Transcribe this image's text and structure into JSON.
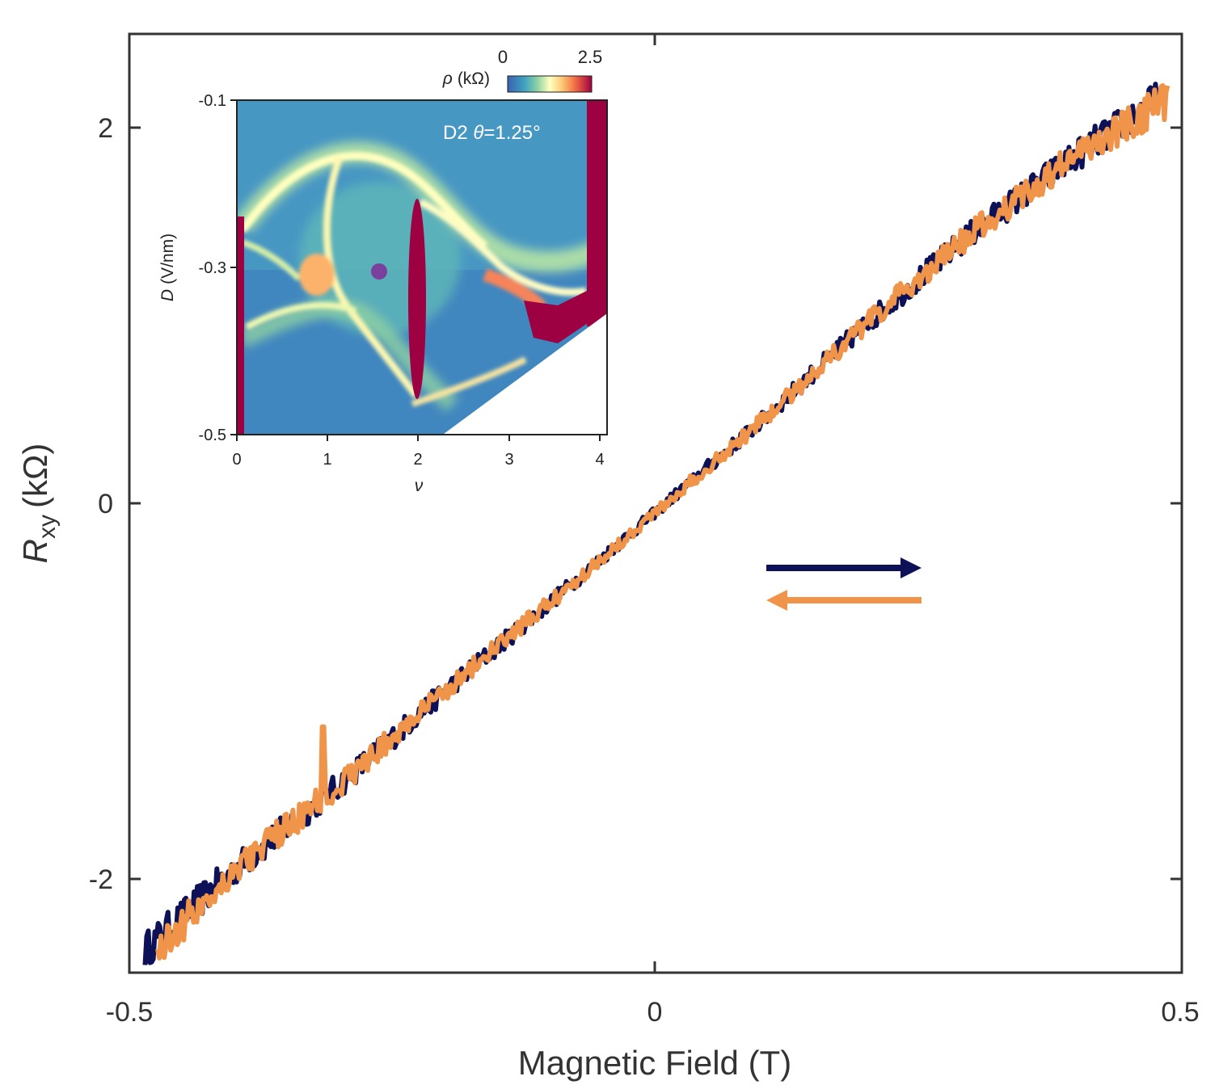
{
  "chart_data": [
    {
      "type": "line",
      "title": "",
      "xlabel": "Magnetic Field (T)",
      "ylabel_main": "R",
      "ylabel_sub": "xy",
      "ylabel_unit": "(kΩ)",
      "xlim": [
        -0.5,
        0.5
      ],
      "ylim": [
        -2.5,
        2.5
      ],
      "x_ticks": [
        -0.5,
        0,
        0.5
      ],
      "x_tick_labels": [
        "-0.5",
        "0",
        "0.5"
      ],
      "y_ticks": [
        -2,
        0,
        2
      ],
      "y_tick_labels": [
        "-2",
        "0",
        "2"
      ],
      "grid": false,
      "legend": "arrows, center-right: forward sweep (→) and backward sweep (←)",
      "series": [
        {
          "name": "sweep up",
          "color": "#0d1157",
          "direction": "→",
          "x": [
            -0.485,
            -0.4,
            -0.3,
            -0.2,
            -0.1,
            0,
            0.1,
            0.2,
            0.3,
            0.4,
            0.478
          ],
          "y": [
            -2.38,
            -1.95,
            -1.5,
            -1.0,
            -0.53,
            -0.05,
            0.43,
            0.95,
            1.43,
            1.85,
            2.15
          ]
        },
        {
          "name": "sweep down",
          "color": "#f0944a",
          "direction": "←",
          "x": [
            -0.473,
            -0.4,
            -0.3,
            -0.2,
            -0.1,
            0,
            0.1,
            0.2,
            0.3,
            0.4,
            0.488
          ],
          "y": [
            -2.38,
            -1.95,
            -1.5,
            -1.0,
            -0.53,
            -0.05,
            0.43,
            0.95,
            1.43,
            1.85,
            2.15
          ],
          "spike": {
            "x": -0.316,
            "y": -1.19
          }
        }
      ]
    },
    {
      "type": "heatmap",
      "title": "D2 θ=1.25°",
      "title_prefix": "D2 ",
      "title_symbol": "θ",
      "title_value": "=1.25°",
      "xlabel": "ν",
      "ylabel_symbol": "D",
      "ylabel_unit": "(V/nm)",
      "xlim": [
        0,
        4.05
      ],
      "ylim": [
        -0.5,
        -0.1
      ],
      "x_ticks": [
        0,
        1,
        2,
        3,
        4
      ],
      "x_tick_labels": [
        "0",
        "1",
        "2",
        "3",
        "4"
      ],
      "y_ticks": [
        -0.1,
        -0.3,
        -0.5
      ],
      "y_tick_labels": [
        "-0.1",
        "-0.3",
        "-0.5"
      ],
      "colorbar": {
        "label_symbol": "ρ",
        "label_unit": "(kΩ)",
        "range": [
          0,
          2.5
        ],
        "tick_labels": [
          "0",
          "2.5"
        ]
      },
      "marker": {
        "x": 1.58,
        "y": -0.3,
        "color": "#7b3f9e"
      }
    }
  ]
}
